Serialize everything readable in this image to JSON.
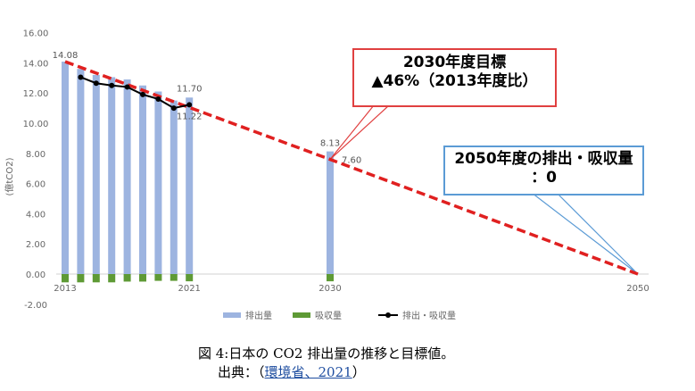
{
  "chart_data": {
    "type": "bar",
    "x_ticks": [
      "2013",
      "2021",
      "2030",
      "2050"
    ],
    "y_ticks": [
      "16.00",
      "14.00",
      "12.00",
      "10.00",
      "8.00",
      "6.00",
      "4.00",
      "2.00",
      "0.00",
      "-2.00"
    ],
    "ylim": [
      -2,
      16
    ],
    "ylabel": "(億tCO2)",
    "grid": false,
    "legend_position": "bottom",
    "series": [
      {
        "name": "排出量",
        "color": "#9db4e0",
        "x": [
          2013,
          2014,
          2015,
          2016,
          2017,
          2018,
          2019,
          2020,
          2021,
          2030
        ],
        "values": [
          14.08,
          13.6,
          13.2,
          13.05,
          12.9,
          12.5,
          12.1,
          11.5,
          11.7,
          8.13
        ]
      },
      {
        "name": "吸収量",
        "color": "#5e9a35",
        "x": [
          2013,
          2014,
          2015,
          2016,
          2017,
          2018,
          2019,
          2020,
          2021,
          2030
        ],
        "values": [
          -0.55,
          -0.55,
          -0.55,
          -0.55,
          -0.5,
          -0.5,
          -0.45,
          -0.45,
          -0.48,
          -0.48
        ]
      },
      {
        "name": "排出・吸収量",
        "color": "#000000",
        "x": [
          2014,
          2015,
          2016,
          2017,
          2018,
          2019,
          2020,
          2021
        ],
        "values": [
          13.05,
          12.65,
          12.5,
          12.4,
          11.9,
          11.6,
          11.0,
          11.22
        ]
      }
    ],
    "target_line": {
      "x": [
        2013,
        2030,
        2050
      ],
      "values": [
        14.08,
        7.6,
        0
      ],
      "color": "#e02020"
    },
    "data_labels": [
      {
        "text": "14.08",
        "x": 2013,
        "y": 14.08
      },
      {
        "text": "11.70",
        "x": 2021,
        "y": 11.7
      },
      {
        "text": "11.22",
        "x": 2021,
        "y": 11.22
      },
      {
        "text": "8.13",
        "x": 2030,
        "y": 8.13
      },
      {
        "text": "7.60",
        "x": 2030,
        "y": 7.6
      }
    ],
    "callouts": {
      "target_2030": {
        "line1": "2030年度目標",
        "line2": "▲46%（2013年度比）"
      },
      "target_2050": {
        "line1": "2050年度の排出・吸収量",
        "line2": "：0"
      }
    }
  },
  "caption": {
    "title": "図 4:日本の CO2 排出量の推移と目標値。",
    "source_prefix": "出典：（",
    "source_link": "環境省、2021",
    "source_suffix": "）"
  }
}
